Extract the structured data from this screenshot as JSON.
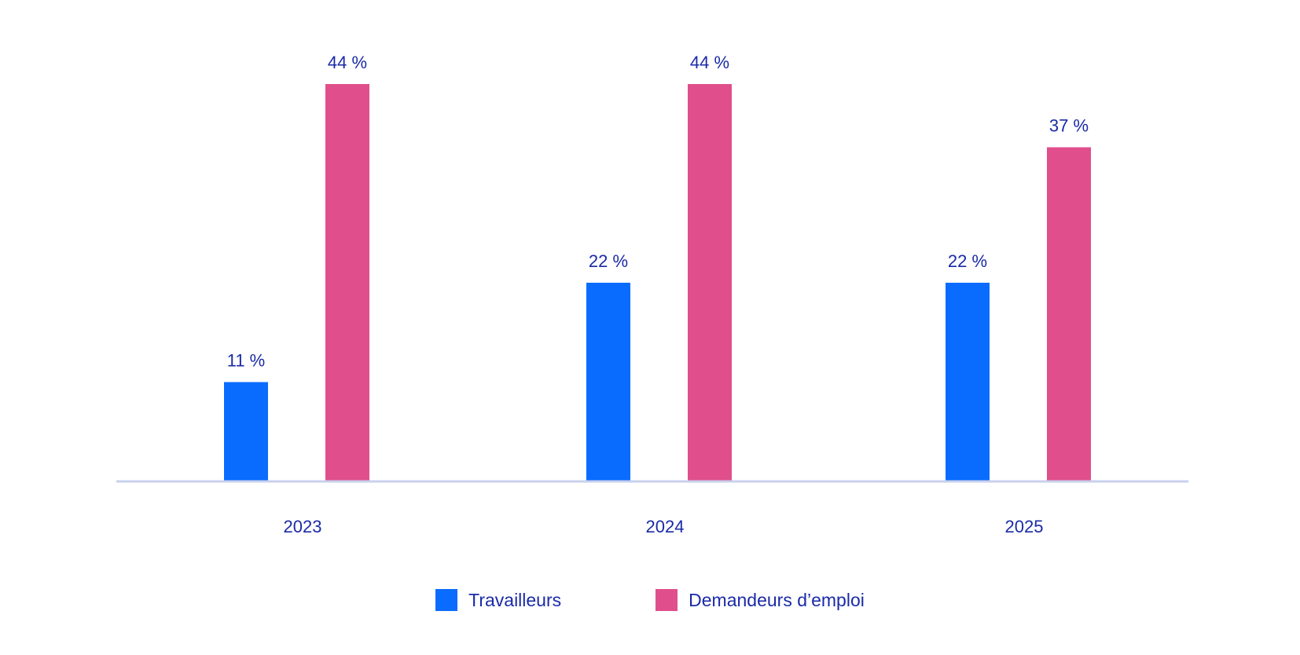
{
  "chart_data": {
    "type": "bar",
    "categories": [
      "2023",
      "2024",
      "2025"
    ],
    "series": [
      {
        "name": "Travailleurs",
        "color": "#0a6cff",
        "values": [
          11,
          22,
          22
        ],
        "labels": [
          "11 %",
          "22 %",
          "22 %"
        ]
      },
      {
        "name": "Demandeurs d’emploi",
        "color": "#e04f8b",
        "values": [
          44,
          44,
          37
        ],
        "labels": [
          "44 %",
          "44 %",
          "37 %"
        ]
      }
    ],
    "ylim": [
      0,
      44
    ],
    "grid": false,
    "legend_position": "bottom-center",
    "colors": {
      "text": "#1a2aa8",
      "axis": "#c9d0ec"
    }
  }
}
